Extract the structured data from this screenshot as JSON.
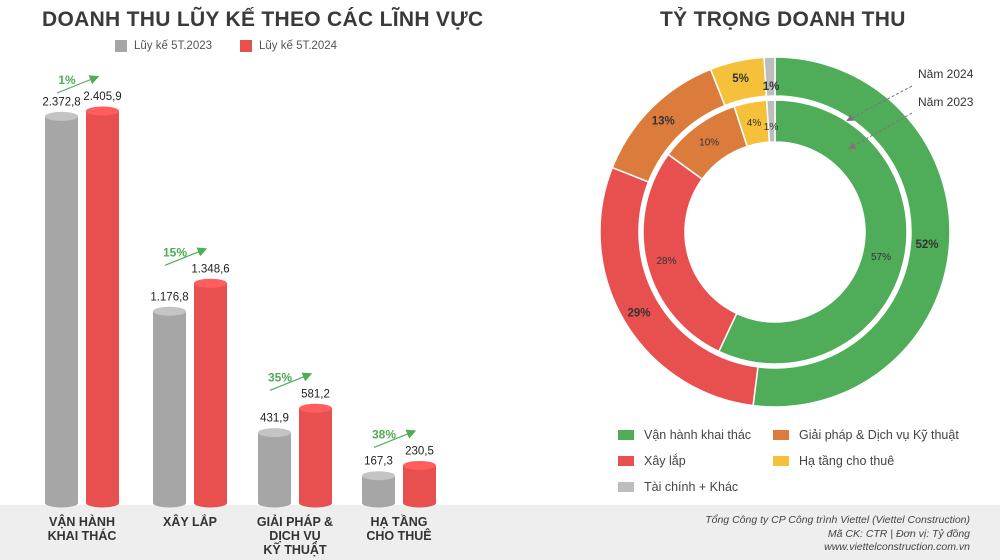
{
  "left_title": "DOANH THU LŨY KẾ THEO CÁC LĨNH VỰC",
  "right_title": "TỶ TRỌNG DOANH THU",
  "colors": {
    "gray": "#a6a6a6",
    "red": "#e8504f",
    "green": "#4fac58",
    "orange": "#dc7c3c",
    "yellow": "#f5c03a",
    "lightgray": "#bdbdbd",
    "growth": "#4fac58"
  },
  "chart_data": [
    {
      "type": "bar",
      "title": "DOANH THU LŨY KẾ THEO CÁC LĨNH VỰC",
      "categories": [
        "VẬN HÀNH\nKHAI THÁC",
        "XÂY LẮP",
        "GIẢI PHÁP &\nDỊCH VỤ\nKỸ THUẬT",
        "HẠ TẦNG\nCHO THUÊ"
      ],
      "series": [
        {
          "name": "Lũy kế 5T.2023",
          "values": [
            2372.8,
            1176.8,
            431.9,
            167.3
          ],
          "labels": [
            "2.372,8",
            "1.176,8",
            "431,9",
            "167,3"
          ]
        },
        {
          "name": "Lũy kế 5T.2024",
          "values": [
            2405.9,
            1348.6,
            581.2,
            230.5
          ],
          "labels": [
            "2.405,9",
            "1.348,6",
            "581,2",
            "230,5"
          ]
        }
      ],
      "growth": [
        "1%",
        "15%",
        "35%",
        "38%"
      ],
      "legend": "top"
    },
    {
      "type": "pie",
      "title": "TỶ TRỌNG DOANH THU",
      "categories": [
        "Vận hành khai thác",
        "Xây lắp",
        "Giải pháp & Dịch vụ Kỹ thuật",
        "Hạ tầng cho thuê",
        "Tài chính + Khác"
      ],
      "series": [
        {
          "name": "Năm 2024",
          "values": [
            52,
            29,
            13,
            5,
            1
          ],
          "labels": [
            "52%",
            "29%",
            "13%",
            "5%",
            "1%"
          ]
        },
        {
          "name": "Năm 2023",
          "values": [
            57,
            28,
            10,
            4,
            1
          ],
          "labels": [
            "57%",
            "28%",
            "10%",
            "4%",
            "1%"
          ]
        }
      ],
      "legend": "bottom"
    }
  ],
  "footer": {
    "company": "Tổng Công ty CP Công trình Viettel (Viettel Construction)",
    "code": "Mã CK: CTR  |  Đơn vị: Tỷ đồng",
    "website": "www.viettelconstruction.com.vn"
  }
}
